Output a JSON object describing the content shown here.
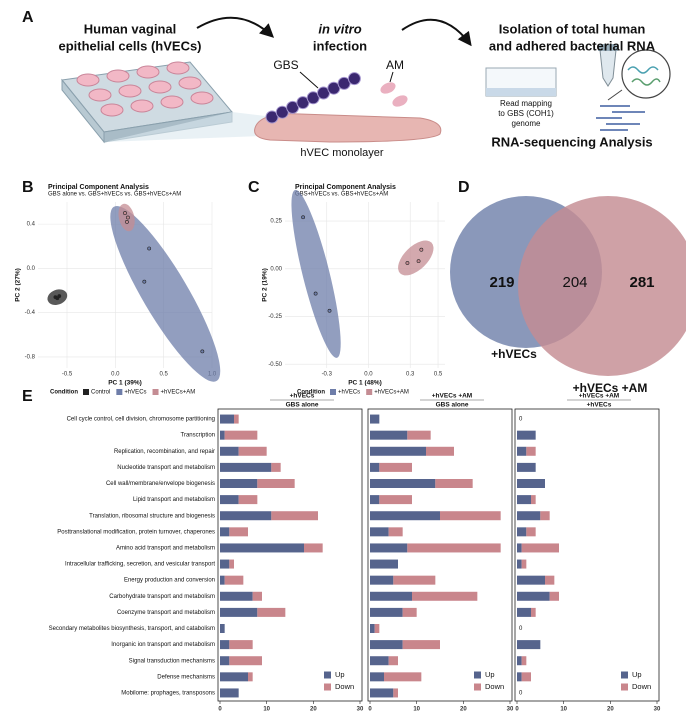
{
  "panel_labels": {
    "a": "A",
    "b": "B",
    "c": "C",
    "d": "D",
    "e": "E"
  },
  "diagram": {
    "cells": [
      "Human vaginal",
      "epithelial cells (hVECs)"
    ],
    "infection": [
      "in vitro",
      "infection"
    ],
    "isolation": [
      "Isolation of total human",
      "and adhered bacterial RNA"
    ],
    "gbs": "GBS",
    "am": "AM",
    "monolayer": "hVEC monolayer",
    "mapping": [
      "Read mapping",
      "to GBS (COH1)",
      "genome"
    ],
    "analysis": "RNA-sequencing Analysis"
  },
  "chart_data": [
    {
      "type": "scatter",
      "title": "Principal Component Analysis",
      "subtitle": "GBS alone vs. GBS+hVECs vs. GBS+hVECs+AM",
      "x_label": "PC 1 (39%)",
      "y_label": "PC 2 (27%)",
      "legend_title": "Condition",
      "xlim": [
        -0.8,
        1.0
      ],
      "ylim": [
        -0.9,
        0.6
      ],
      "xticks": [
        -0.5,
        {
          "value": 0,
          "label": "0.0"
        },
        0.5,
        {
          "value": 1,
          "label": "1.0"
        }
      ],
      "yticks": [
        0.4,
        {
          "value": 0,
          "label": "0.0"
        },
        -0.4,
        -0.8
      ],
      "grid": true,
      "series": [
        {
          "name": "Control",
          "color": "#222222",
          "x": [
            -0.62,
            -0.6,
            -0.58
          ],
          "y": [
            -0.26,
            -0.27,
            -0.25
          ]
        },
        {
          "name": "+hVECs",
          "color": "#6e7da9",
          "x": [
            0.35,
            0.3,
            0.9
          ],
          "y": [
            0.18,
            -0.12,
            -0.75
          ]
        },
        {
          "name": "+hVECs+AM",
          "color": "#c48c93",
          "x": [
            0.1,
            0.13,
            0.12
          ],
          "y": [
            0.5,
            0.46,
            0.42
          ]
        }
      ]
    },
    {
      "type": "scatter",
      "title": "Principal Component Analysis",
      "subtitle": "GBS+hVECs vs. GBS+hVECs+AM",
      "x_label": "PC 1 (48%)",
      "y_label": "PC 2 (19%)",
      "legend_title": "Condition",
      "xlim": [
        -0.6,
        0.55
      ],
      "ylim": [
        -0.52,
        0.35
      ],
      "xticks": [
        -0.3,
        {
          "value": 0,
          "label": "0.0"
        },
        0.3,
        0.5
      ],
      "yticks": [
        0.25,
        {
          "value": 0,
          "label": "0.00"
        },
        -0.25,
        {
          "value": -0.5,
          "label": "-0.50"
        }
      ],
      "grid": true,
      "series": [
        {
          "name": "+hVECs",
          "color": "#6e7da9",
          "x": [
            -0.47,
            -0.38,
            -0.28
          ],
          "y": [
            0.27,
            -0.13,
            -0.22
          ]
        },
        {
          "name": "+hVECs+AM",
          "color": "#c48c93",
          "x": [
            0.28,
            0.36,
            0.38
          ],
          "y": [
            0.03,
            0.04,
            0.1
          ]
        }
      ]
    },
    {
      "type": "venn",
      "sets": [
        {
          "name": "+hVECs",
          "color": "#7d8db3",
          "only": 219
        },
        {
          "name": "+hVECs +AM",
          "color": "#c48c93",
          "only": 281
        }
      ],
      "overlap": 204
    },
    {
      "type": "stacked-barh",
      "categories": [
        "Cell cycle control, cell division, chromosome partitioning",
        "Transcription",
        "Replication, recombination, and repair",
        "Nucleotide transport and metabolism",
        "Cell wall/membrane/envelope biogenesis",
        "Lipid transport and metabolism",
        "Translation, ribosomal structure and biogenesis",
        "Posttranslational modification, protein turnover, chaperones",
        "Amino acid transport and metabolism",
        "Intracellular trafficking, secretion, and vesicular transport",
        "Energy production and conversion",
        "Carbohydrate transport and metabolism",
        "Coenzyme transport and metabolism",
        "Secondary metabolites biosynthesis, transport, and catabolism",
        "Inorganic ion transport and metabolism",
        "Signal transduction mechanisms",
        "Defense mechanisms",
        "Mobilome: prophages, transposons"
      ],
      "xlim": [
        0,
        30
      ],
      "xticks": [
        0,
        10,
        20,
        30
      ],
      "legend": "lower right",
      "panels": [
        {
          "title": [
            "+hVECs",
            "GBS alone"
          ],
          "series": [
            {
              "name": "Up",
              "color": "#56648d",
              "values": [
                3,
                1,
                4,
                11,
                8,
                4,
                11,
                2,
                18,
                2,
                1,
                7,
                8,
                1,
                2,
                2,
                6,
                4
              ]
            },
            {
              "name": "Down",
              "color": "#c9868c",
              "values": [
                1,
                7,
                6,
                2,
                8,
                4,
                10,
                4,
                4,
                1,
                4,
                2,
                6,
                0,
                5,
                7,
                1,
                0
              ]
            }
          ]
        },
        {
          "title": [
            "+hVECs +AM",
            "GBS alone"
          ],
          "series": [
            {
              "name": "Up",
              "color": "#56648d",
              "values": [
                2,
                8,
                12,
                2,
                14,
                2,
                15,
                4,
                8,
                6,
                5,
                9,
                7,
                1,
                7,
                4,
                3,
                5
              ]
            },
            {
              "name": "Down",
              "color": "#c9868c",
              "values": [
                0,
                5,
                6,
                7,
                8,
                7,
                13,
                3,
                20,
                0,
                9,
                14,
                3,
                1,
                8,
                2,
                8,
                1
              ]
            }
          ]
        },
        {
          "title": [
            "+hVECs +AM",
            "+hVECs"
          ],
          "series": [
            {
              "name": "Up",
              "color": "#56648d",
              "values": [
                0,
                4,
                2,
                4,
                6,
                3,
                5,
                2,
                1,
                1,
                6,
                7,
                3,
                0,
                5,
                1,
                1,
                0
              ]
            },
            {
              "name": "Down",
              "color": "#c9868c",
              "values": [
                0,
                0,
                2,
                0,
                0,
                1,
                2,
                2,
                8,
                1,
                2,
                2,
                1,
                0,
                0,
                1,
                2,
                0
              ]
            }
          ]
        }
      ]
    }
  ]
}
